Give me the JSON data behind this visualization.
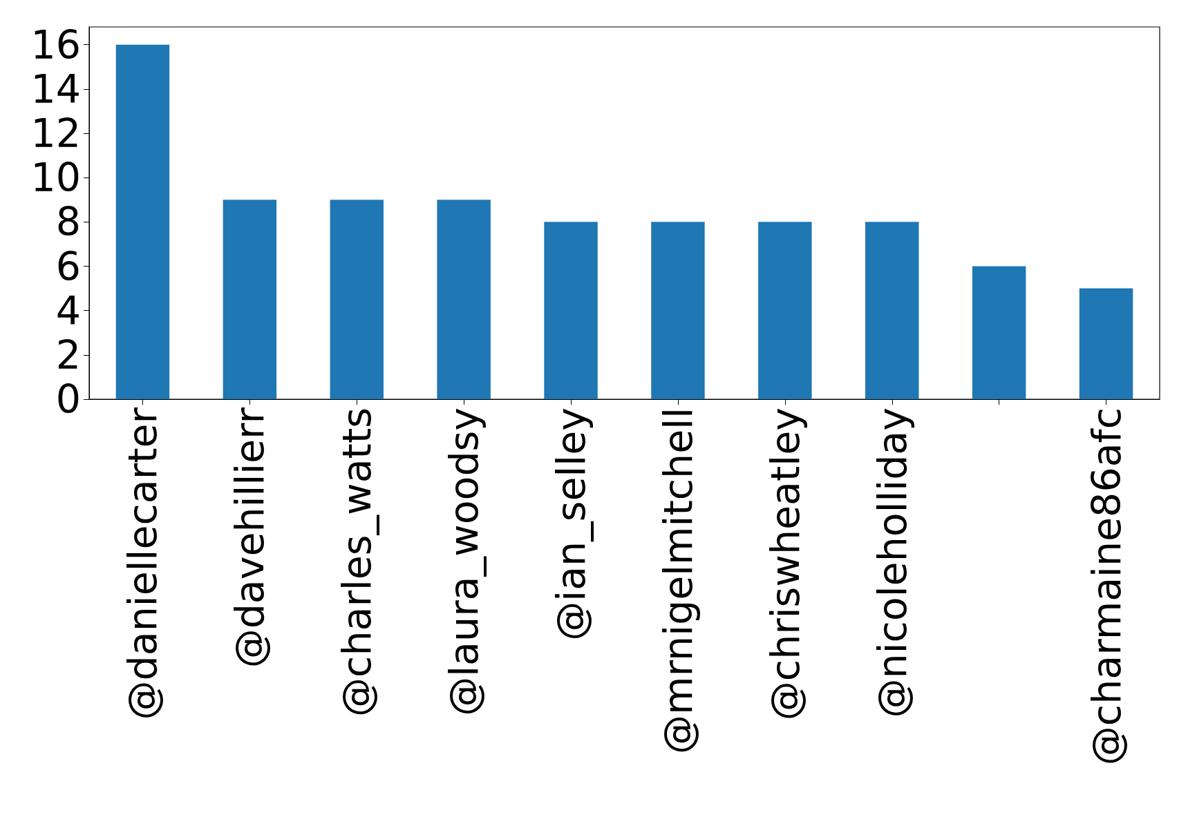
{
  "chart_data": {
    "type": "bar",
    "categories": [
      "@daniellecarter",
      "@davehillierr",
      "@charles_watts",
      "@laura_woodsy",
      "@ian_selley",
      "@mrnigelmitchell",
      "@chriswheatley",
      "@nicoleholliday",
      null,
      "@charmaine86afc"
    ],
    "values": [
      16,
      9,
      9,
      9,
      8,
      8,
      8,
      8,
      6,
      5
    ],
    "color": "#1f77b4",
    "ylim": [
      0,
      16.8
    ],
    "yticks": [
      0,
      2,
      4,
      6,
      8,
      10,
      12,
      14,
      16
    ],
    "grid": false
  }
}
